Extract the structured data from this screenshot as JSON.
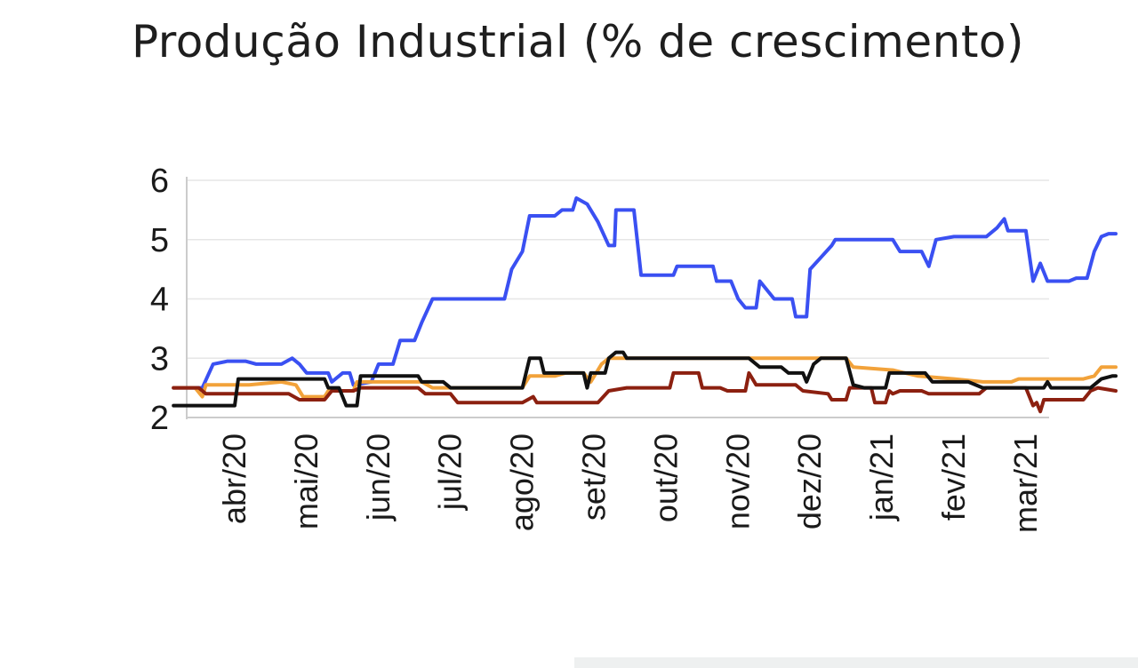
{
  "title": "Produção Industrial (% de crescimento)",
  "chart_data": {
    "type": "line",
    "title": "Produção Industrial (% de crescimento)",
    "xlabel": "",
    "ylabel": "",
    "ylim": [
      2,
      6
    ],
    "yticks": [
      "2",
      "3",
      "4",
      "5",
      "6"
    ],
    "grid": true,
    "legend": "none",
    "categories": [
      "abr/20",
      "mai/20",
      "jun/20",
      "jul/20",
      "ago/20",
      "set/20",
      "out/20",
      "nov/20",
      "dez/20",
      "jan/21",
      "fev/21",
      "mar/21"
    ],
    "x_range": [
      -0.85,
      11.25
    ],
    "series": [
      {
        "color": "#3a50f2",
        "points": [
          [
            -0.85,
            2.5
          ],
          [
            -0.45,
            2.5
          ],
          [
            -0.3,
            2.9
          ],
          [
            -0.1,
            2.95
          ],
          [
            0.15,
            2.95
          ],
          [
            0.3,
            2.9
          ],
          [
            0.65,
            2.9
          ],
          [
            0.8,
            3.0
          ],
          [
            0.9,
            2.9
          ],
          [
            1.0,
            2.75
          ],
          [
            1.3,
            2.75
          ],
          [
            1.35,
            2.6
          ],
          [
            1.5,
            2.75
          ],
          [
            1.6,
            2.75
          ],
          [
            1.65,
            2.55
          ],
          [
            1.9,
            2.6
          ],
          [
            2.0,
            2.9
          ],
          [
            2.2,
            2.9
          ],
          [
            2.3,
            3.3
          ],
          [
            2.5,
            3.3
          ],
          [
            2.6,
            3.6
          ],
          [
            2.75,
            4.0
          ],
          [
            3.25,
            4.0
          ],
          [
            3.75,
            4.0
          ],
          [
            3.85,
            4.5
          ],
          [
            4.0,
            4.8
          ],
          [
            4.1,
            5.4
          ],
          [
            4.45,
            5.4
          ],
          [
            4.55,
            5.5
          ],
          [
            4.7,
            5.5
          ],
          [
            4.75,
            5.7
          ],
          [
            4.9,
            5.6
          ],
          [
            5.05,
            5.3
          ],
          [
            5.2,
            4.9
          ],
          [
            5.28,
            4.9
          ],
          [
            5.3,
            5.5
          ],
          [
            5.55,
            5.5
          ],
          [
            5.65,
            4.4
          ],
          [
            6.1,
            4.4
          ],
          [
            6.15,
            4.55
          ],
          [
            6.65,
            4.55
          ],
          [
            6.7,
            4.3
          ],
          [
            6.9,
            4.3
          ],
          [
            7.0,
            4.0
          ],
          [
            7.1,
            3.85
          ],
          [
            7.25,
            3.85
          ],
          [
            7.3,
            4.3
          ],
          [
            7.5,
            4.0
          ],
          [
            7.75,
            4.0
          ],
          [
            7.8,
            3.7
          ],
          [
            7.95,
            3.7
          ],
          [
            8.0,
            4.5
          ],
          [
            8.15,
            4.7
          ],
          [
            8.3,
            4.9
          ],
          [
            8.35,
            5.0
          ],
          [
            9.15,
            5.0
          ],
          [
            9.25,
            4.8
          ],
          [
            9.55,
            4.8
          ],
          [
            9.65,
            4.55
          ],
          [
            9.75,
            5.0
          ],
          [
            10.0,
            5.05
          ],
          [
            10.45,
            5.05
          ],
          [
            10.6,
            5.2
          ],
          [
            10.7,
            5.35
          ],
          [
            10.75,
            5.15
          ],
          [
            11.0,
            5.15
          ],
          [
            11.1,
            4.3
          ],
          [
            11.2,
            4.6
          ],
          [
            11.3,
            4.3
          ],
          [
            11.6,
            4.3
          ],
          [
            11.7,
            4.35
          ],
          [
            11.85,
            4.35
          ],
          [
            11.95,
            4.8
          ],
          [
            12.05,
            5.05
          ],
          [
            12.15,
            5.1
          ],
          [
            12.25,
            5.1
          ]
        ]
      },
      {
        "color": "#f2a23a",
        "points": [
          [
            -0.85,
            2.5
          ],
          [
            -0.55,
            2.5
          ],
          [
            -0.45,
            2.35
          ],
          [
            -0.4,
            2.55
          ],
          [
            0.2,
            2.55
          ],
          [
            0.65,
            2.6
          ],
          [
            0.85,
            2.55
          ],
          [
            0.95,
            2.35
          ],
          [
            1.25,
            2.35
          ],
          [
            1.3,
            2.45
          ],
          [
            1.65,
            2.45
          ],
          [
            1.7,
            2.6
          ],
          [
            2.2,
            2.6
          ],
          [
            2.6,
            2.6
          ],
          [
            2.75,
            2.5
          ],
          [
            3.25,
            2.5
          ],
          [
            3.75,
            2.5
          ],
          [
            4.0,
            2.5
          ],
          [
            4.1,
            2.7
          ],
          [
            4.45,
            2.7
          ],
          [
            4.6,
            2.75
          ],
          [
            4.85,
            2.75
          ],
          [
            4.95,
            2.6
          ],
          [
            5.1,
            2.9
          ],
          [
            5.2,
            3.0
          ],
          [
            5.8,
            3.0
          ],
          [
            7.0,
            3.0
          ],
          [
            7.15,
            3.0
          ],
          [
            8.15,
            3.0
          ],
          [
            8.5,
            3.0
          ],
          [
            8.6,
            2.85
          ],
          [
            9.15,
            2.8
          ],
          [
            9.5,
            2.7
          ],
          [
            10.0,
            2.65
          ],
          [
            10.4,
            2.6
          ],
          [
            10.8,
            2.6
          ],
          [
            10.9,
            2.65
          ],
          [
            11.5,
            2.65
          ],
          [
            11.8,
            2.65
          ],
          [
            11.95,
            2.7
          ],
          [
            12.05,
            2.85
          ],
          [
            12.25,
            2.85
          ]
        ]
      },
      {
        "color": "#8c2010",
        "points": [
          [
            -0.85,
            2.5
          ],
          [
            -0.5,
            2.5
          ],
          [
            -0.4,
            2.4
          ],
          [
            0.1,
            2.4
          ],
          [
            0.2,
            2.4
          ],
          [
            0.75,
            2.4
          ],
          [
            0.9,
            2.3
          ],
          [
            1.25,
            2.3
          ],
          [
            1.35,
            2.45
          ],
          [
            1.65,
            2.45
          ],
          [
            1.75,
            2.5
          ],
          [
            2.2,
            2.5
          ],
          [
            2.55,
            2.5
          ],
          [
            2.65,
            2.4
          ],
          [
            3.0,
            2.4
          ],
          [
            3.1,
            2.25
          ],
          [
            4.0,
            2.25
          ],
          [
            4.15,
            2.35
          ],
          [
            4.2,
            2.25
          ],
          [
            5.05,
            2.25
          ],
          [
            5.2,
            2.45
          ],
          [
            5.45,
            2.5
          ],
          [
            6.05,
            2.5
          ],
          [
            6.1,
            2.75
          ],
          [
            6.45,
            2.75
          ],
          [
            6.5,
            2.5
          ],
          [
            6.75,
            2.5
          ],
          [
            6.85,
            2.45
          ],
          [
            7.1,
            2.45
          ],
          [
            7.15,
            2.75
          ],
          [
            7.25,
            2.55
          ],
          [
            7.8,
            2.55
          ],
          [
            7.9,
            2.45
          ],
          [
            8.25,
            2.4
          ],
          [
            8.3,
            2.3
          ],
          [
            8.5,
            2.3
          ],
          [
            8.55,
            2.5
          ],
          [
            8.85,
            2.5
          ],
          [
            8.9,
            2.25
          ],
          [
            9.05,
            2.25
          ],
          [
            9.1,
            2.45
          ],
          [
            9.15,
            2.4
          ],
          [
            9.25,
            2.45
          ],
          [
            9.55,
            2.45
          ],
          [
            9.65,
            2.4
          ],
          [
            10.35,
            2.4
          ],
          [
            10.45,
            2.5
          ],
          [
            10.8,
            2.5
          ],
          [
            11.0,
            2.5
          ],
          [
            11.1,
            2.2
          ],
          [
            11.15,
            2.25
          ],
          [
            11.2,
            2.1
          ],
          [
            11.25,
            2.3
          ],
          [
            11.8,
            2.3
          ],
          [
            11.9,
            2.45
          ],
          [
            12.0,
            2.5
          ],
          [
            12.25,
            2.45
          ]
        ]
      },
      {
        "color": "#111111",
        "points": [
          [
            -0.85,
            2.2
          ],
          [
            0.0,
            2.2
          ],
          [
            0.05,
            2.65
          ],
          [
            0.5,
            2.65
          ],
          [
            1.25,
            2.65
          ],
          [
            1.3,
            2.5
          ],
          [
            1.45,
            2.5
          ],
          [
            1.55,
            2.2
          ],
          [
            1.7,
            2.2
          ],
          [
            1.75,
            2.7
          ],
          [
            2.55,
            2.7
          ],
          [
            2.6,
            2.6
          ],
          [
            2.9,
            2.6
          ],
          [
            3.0,
            2.5
          ],
          [
            3.25,
            2.5
          ],
          [
            3.75,
            2.5
          ],
          [
            4.0,
            2.5
          ],
          [
            4.1,
            3.0
          ],
          [
            4.25,
            3.0
          ],
          [
            4.3,
            2.75
          ],
          [
            4.85,
            2.75
          ],
          [
            4.9,
            2.5
          ],
          [
            4.95,
            2.75
          ],
          [
            5.15,
            2.75
          ],
          [
            5.2,
            3.0
          ],
          [
            5.3,
            3.1
          ],
          [
            5.4,
            3.1
          ],
          [
            5.45,
            3.0
          ],
          [
            5.85,
            3.0
          ],
          [
            6.0,
            3.0
          ],
          [
            7.15,
            3.0
          ],
          [
            7.3,
            2.85
          ],
          [
            7.6,
            2.85
          ],
          [
            7.7,
            2.75
          ],
          [
            7.9,
            2.75
          ],
          [
            7.95,
            2.6
          ],
          [
            8.05,
            2.9
          ],
          [
            8.15,
            3.0
          ],
          [
            8.5,
            3.0
          ],
          [
            8.6,
            2.55
          ],
          [
            8.75,
            2.5
          ],
          [
            9.05,
            2.5
          ],
          [
            9.1,
            2.75
          ],
          [
            9.6,
            2.75
          ],
          [
            9.7,
            2.6
          ],
          [
            10.2,
            2.6
          ],
          [
            10.4,
            2.5
          ],
          [
            11.0,
            2.5
          ],
          [
            11.25,
            2.5
          ],
          [
            11.3,
            2.6
          ],
          [
            11.35,
            2.5
          ],
          [
            11.9,
            2.5
          ],
          [
            12.05,
            2.65
          ],
          [
            12.2,
            2.7
          ],
          [
            12.25,
            2.7
          ]
        ]
      }
    ]
  }
}
